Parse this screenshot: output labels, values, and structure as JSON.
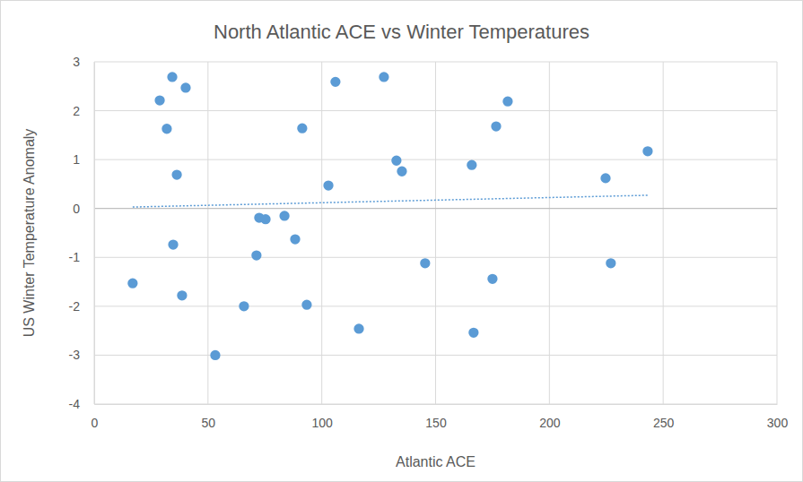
{
  "chart_data": {
    "type": "scatter",
    "title": "North Atlantic ACE vs Winter Temperatures",
    "x_label": "Atlantic ACE",
    "y_label": "US Winter Temperature Anomaly",
    "xlim": [
      0,
      300
    ],
    "xticks": [
      0,
      50,
      100,
      150,
      200,
      250,
      300
    ],
    "ylim": [
      -4,
      3
    ],
    "yticks": [
      -4,
      -3,
      -2,
      -1,
      0,
      1,
      2,
      3
    ],
    "grid": true,
    "series": [
      {
        "type": "scatter",
        "marker": "circle",
        "color": "#5b9bd5",
        "x": [
          34.3,
          28.8,
          40.2,
          31.9,
          36.3,
          34.7,
          16.9,
          38.6,
          53.2,
          65.8,
          71.3,
          72.5,
          75.3,
          83.6,
          88.3,
          91.4,
          93.4,
          102.9,
          106.0,
          116.3,
          127.3,
          132.8,
          135.2,
          145.4,
          165.9,
          166.7,
          175.0,
          176.6,
          181.7,
          224.7,
          227.0,
          243.2
        ],
        "values": [
          2.69,
          2.21,
          2.47,
          1.63,
          0.69,
          -0.74,
          -1.53,
          -1.78,
          -3.0,
          -2.0,
          -0.96,
          -0.19,
          -0.22,
          -0.15,
          -0.63,
          1.64,
          -1.97,
          0.47,
          2.59,
          -2.46,
          2.69,
          0.98,
          0.76,
          -1.12,
          0.89,
          -2.54,
          -1.44,
          1.68,
          2.19,
          0.62,
          -1.12,
          1.17
        ]
      },
      {
        "type": "line",
        "line_style": "dotted",
        "color": "#5b9bd5",
        "x": [
          16.9,
          243.2
        ],
        "values": [
          0.03,
          0.27
        ]
      }
    ]
  }
}
